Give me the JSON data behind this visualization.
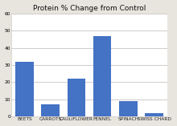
{
  "title": "Protein % Change from Control",
  "categories": [
    "BEETS",
    "CARROTS",
    "CAULIFLOWER",
    "FENNEL",
    "SPINACH",
    "SWISS CHARD"
  ],
  "values": [
    32,
    7,
    22,
    47,
    9,
    2
  ],
  "bar_color": "#4472C4",
  "ylim": [
    0,
    60
  ],
  "yticks": [
    0,
    10,
    20,
    30,
    40,
    50,
    60
  ],
  "title_fontsize": 6.5,
  "tick_fontsize": 4.2,
  "fig_background": "#e8e4de",
  "plot_background": "#ffffff",
  "grid_color": "#d0ccc8"
}
